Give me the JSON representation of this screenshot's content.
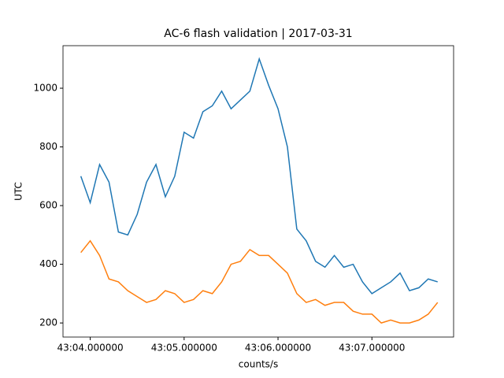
{
  "chart_data": {
    "type": "line",
    "title": "AC-6 flash validation | 2017-03-31",
    "x_label": "counts/s",
    "y_label": "UTC",
    "x": [
      3.9,
      4.0,
      4.1,
      4.2,
      4.3,
      4.4,
      4.5,
      4.6,
      4.7,
      4.8,
      4.9,
      5.0,
      5.1,
      5.2,
      5.3,
      5.4,
      5.5,
      5.6,
      5.7,
      5.8,
      5.9,
      6.0,
      6.1,
      6.2,
      6.3,
      6.4,
      6.5,
      6.6,
      6.7,
      6.8,
      6.9,
      7.0,
      7.1,
      7.2,
      7.3,
      7.4,
      7.5,
      7.6,
      7.7
    ],
    "series": [
      {
        "color": "#1f77b4",
        "values": [
          700,
          610,
          740,
          680,
          510,
          500,
          570,
          680,
          740,
          630,
          700,
          850,
          830,
          920,
          940,
          990,
          930,
          960,
          990,
          1100,
          1010,
          930,
          800,
          520,
          480,
          410,
          390,
          430,
          390,
          400,
          340,
          300,
          320,
          340,
          370,
          310,
          320,
          350,
          340
        ]
      },
      {
        "color": "#ff7f0e",
        "values": [
          440,
          480,
          430,
          350,
          340,
          310,
          290,
          270,
          280,
          310,
          300,
          270,
          280,
          310,
          300,
          340,
          400,
          410,
          450,
          430,
          430,
          400,
          370,
          300,
          270,
          280,
          260,
          270,
          270,
          240,
          230,
          230,
          200,
          210,
          200,
          200,
          210,
          230,
          270
        ]
      }
    ],
    "xlim": [
      3.71,
      7.87
    ],
    "xticks": [
      {
        "value": 4,
        "label": "43:04.000000"
      },
      {
        "value": 5,
        "label": "43:05.000000"
      },
      {
        "value": 6,
        "label": "43:06.000000"
      },
      {
        "value": 7,
        "label": "43:07.000000"
      }
    ],
    "ylim": [
      152,
      1145
    ],
    "yticks": [
      200,
      400,
      600,
      800,
      1000
    ],
    "grid": false
  }
}
